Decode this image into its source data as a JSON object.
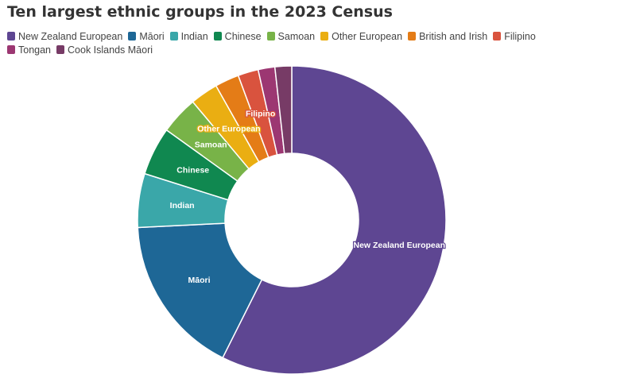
{
  "chart_data": {
    "type": "pie",
    "donut": true,
    "title": "Ten largest ethnic groups in the 2023 Census",
    "legend_position": "top-left",
    "slices": [
      {
        "label": "New Zealand European",
        "value": 59.0,
        "color": "#5e4692",
        "show_label": true
      },
      {
        "label": "Māori",
        "value": 17.3,
        "color": "#1e6796",
        "show_label": true
      },
      {
        "label": "Indian",
        "value": 5.8,
        "color": "#3aa7a9",
        "show_label": true
      },
      {
        "label": "Chinese",
        "value": 5.2,
        "color": "#108850",
        "show_label": true
      },
      {
        "label": "Samoan",
        "value": 4.1,
        "color": "#78b348",
        "show_label": true
      },
      {
        "label": "Other European",
        "value": 3.0,
        "color": "#eaae12",
        "show_label": true
      },
      {
        "label": "British and Irish",
        "value": 2.6,
        "color": "#e47c17",
        "show_label": false
      },
      {
        "label": "Filipino",
        "value": 2.2,
        "color": "#d9533e",
        "show_label": true
      },
      {
        "label": "Tongan",
        "value": 1.8,
        "color": "#9c3772",
        "show_label": false
      },
      {
        "label": "Cook Islands Māori",
        "value": 1.8,
        "color": "#773b66",
        "show_label": false
      }
    ]
  }
}
